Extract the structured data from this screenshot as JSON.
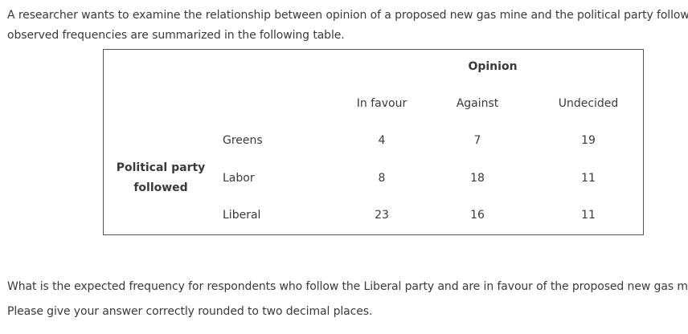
{
  "intro": {
    "line1": "A researcher wants to examine the relationship between opinion of a proposed new gas mine and the political party followed. T",
    "line2": "observed frequencies are summarized in the following table."
  },
  "table": {
    "group_header": "Opinion",
    "columns": [
      "In favour",
      "Against",
      "Undecided"
    ],
    "row_header_line1": "Political party",
    "row_header_line2": "followed",
    "rows": [
      {
        "label": "Greens",
        "values": [
          "4",
          "7",
          "19"
        ]
      },
      {
        "label": "Labor",
        "values": [
          "8",
          "18",
          "11"
        ]
      },
      {
        "label": "Liberal",
        "values": [
          "23",
          "16",
          "11"
        ]
      }
    ]
  },
  "question": {
    "line1": "What is the expected frequency for respondents who follow the Liberal party and are in favour of the proposed new gas mine?",
    "line2": "Please give your answer correctly rounded to two decimal places."
  }
}
